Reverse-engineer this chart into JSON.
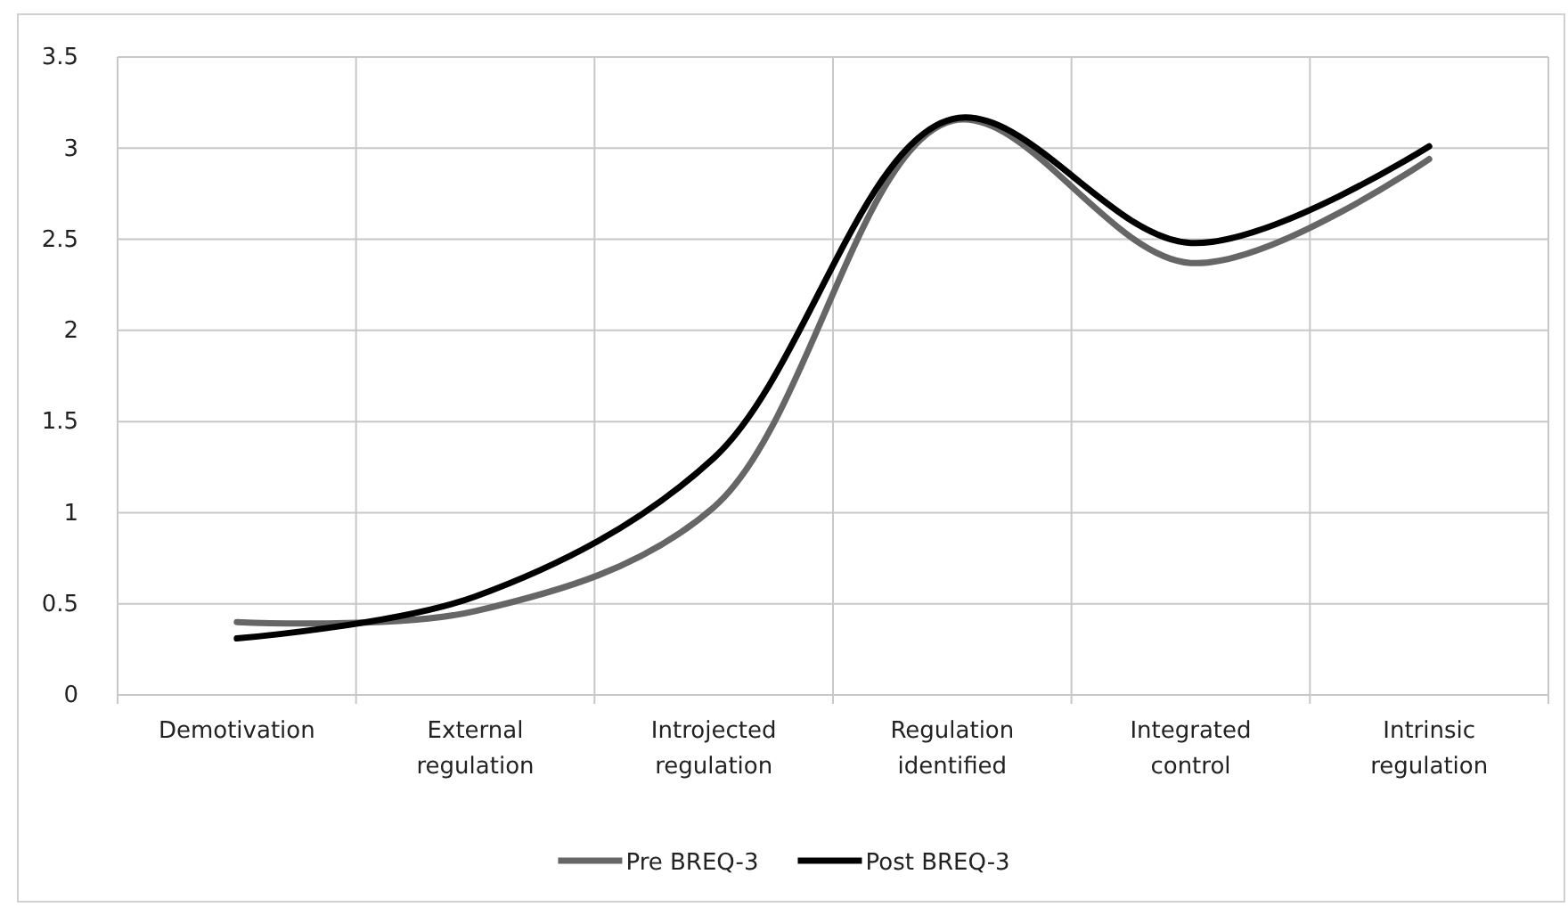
{
  "chart_data": {
    "type": "line",
    "categories": [
      "Demotivation",
      "External regulation",
      "Introjected regulation",
      "Regulation identified",
      "Integrated control",
      "Intrinsic regulation"
    ],
    "series": [
      {
        "name": "Pre BREQ-3",
        "color": "#666666",
        "values": [
          0.4,
          0.46,
          1.03,
          3.15,
          2.37,
          2.94
        ]
      },
      {
        "name": "Post BREQ-3",
        "color": "#000000",
        "values": [
          0.31,
          0.54,
          1.3,
          3.16,
          2.48,
          3.01
        ]
      }
    ],
    "ylim": [
      0,
      3.5
    ],
    "yticks": [
      {
        "value": 0,
        "label": "0"
      },
      {
        "value": 0.5,
        "label": "0.5"
      },
      {
        "value": 1,
        "label": "1"
      },
      {
        "value": 1.5,
        "label": "1.5"
      },
      {
        "value": 2,
        "label": "2"
      },
      {
        "value": 2.5,
        "label": "2.5"
      },
      {
        "value": 3,
        "label": "3"
      },
      {
        "value": 3.5,
        "label": "3.5"
      }
    ],
    "grid": true,
    "legend": "bottom",
    "marker": "none",
    "line_style": "solid"
  }
}
